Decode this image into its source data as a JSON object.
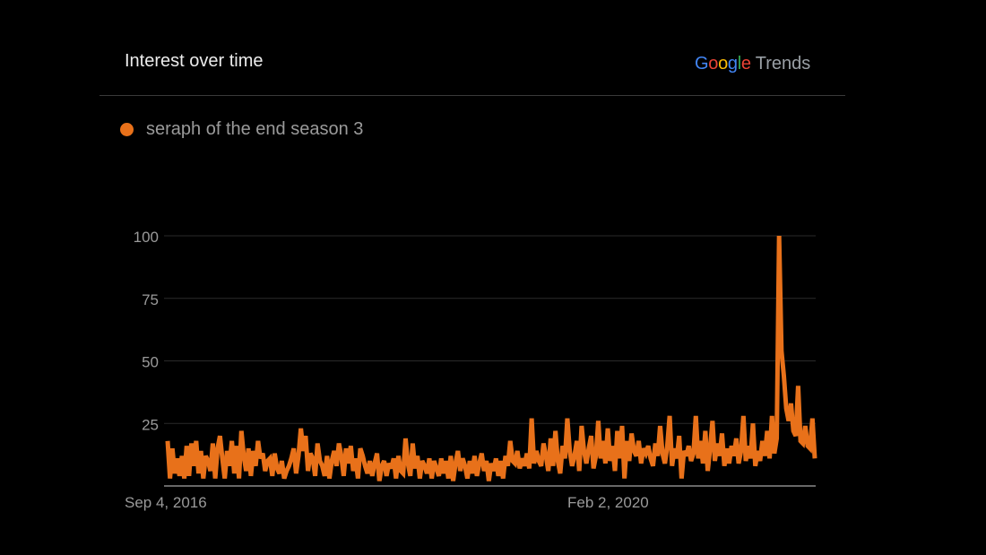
{
  "header": {
    "title": "Interest over time",
    "logo_google": "Google",
    "logo_trends": "Trends"
  },
  "colors": {
    "series": "#e8711a",
    "grid": "#2a2a2a",
    "axis": "#9a9a9a",
    "background": "#000000"
  },
  "chart_data": {
    "type": "line",
    "title": "Interest over time",
    "ylim": [
      0,
      100
    ],
    "y_ticks": [
      25,
      50,
      75,
      100
    ],
    "x_tick_labels": [
      "Sep 4, 2016",
      "Feb 2, 2020"
    ],
    "grid": true,
    "legend_position": "top-left",
    "series": [
      {
        "name": "seraph of the end season 3",
        "values": [
          18,
          3,
          15,
          5,
          11,
          4,
          12,
          3,
          16,
          4,
          17,
          8,
          18,
          5,
          14,
          3,
          12,
          10,
          6,
          17,
          3,
          15,
          20,
          11,
          3,
          14,
          8,
          18,
          5,
          16,
          3,
          22,
          12,
          6,
          15,
          4,
          14,
          8,
          18,
          11,
          13,
          6,
          10,
          11,
          4,
          13,
          7,
          5,
          10,
          3,
          6,
          8,
          11,
          15,
          5,
          12,
          23,
          14,
          20,
          6,
          13,
          11,
          4,
          17,
          10,
          8,
          4,
          12,
          3,
          10,
          14,
          8,
          17,
          12,
          4,
          15,
          9,
          16,
          6,
          11,
          3,
          15,
          12,
          8,
          5,
          10,
          4,
          9,
          13,
          2,
          8,
          10,
          4,
          9,
          7,
          11,
          3,
          12,
          6,
          5,
          19,
          9,
          4,
          17,
          7,
          12,
          3,
          10,
          8,
          5,
          11,
          3,
          10,
          7,
          4,
          11,
          5,
          10,
          3,
          12,
          2,
          9,
          14,
          6,
          11,
          8,
          3,
          10,
          5,
          12,
          4,
          9,
          13,
          6,
          10,
          2,
          9,
          6,
          11,
          4,
          10,
          3,
          12,
          8,
          18,
          10,
          9,
          14,
          7,
          11,
          8,
          13,
          7,
          27,
          9,
          14,
          10,
          8,
          17,
          12,
          6,
          19,
          8,
          22,
          10,
          5,
          16,
          11,
          27,
          14,
          8,
          12,
          18,
          6,
          24,
          14,
          9,
          15,
          20,
          7,
          12,
          26,
          11,
          18,
          9,
          23,
          10,
          16,
          6,
          22,
          11,
          24,
          3,
          18,
          10,
          21,
          14,
          12,
          18,
          9,
          15,
          13,
          16,
          11,
          8,
          17,
          12,
          24,
          13,
          9,
          16,
          28,
          8,
          15,
          11,
          20,
          3,
          14,
          12,
          16,
          10,
          13,
          28,
          11,
          18,
          9,
          22,
          6,
          15,
          26,
          10,
          17,
          12,
          21,
          8,
          15,
          9,
          16,
          12,
          19,
          9,
          14,
          28,
          10,
          16,
          11,
          25,
          8,
          14,
          10,
          18,
          12,
          22,
          11,
          28,
          13,
          19,
          100,
          54,
          44,
          31,
          26,
          33,
          22,
          20,
          40,
          18,
          17,
          24,
          16,
          15,
          27,
          11
        ]
      }
    ]
  }
}
